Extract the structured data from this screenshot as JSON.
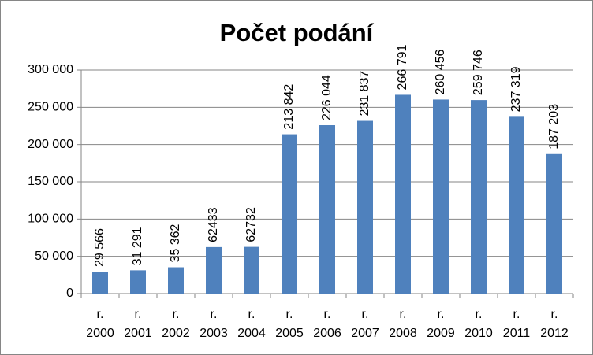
{
  "chart_data": {
    "type": "bar",
    "title": "Počet podání",
    "categories": [
      "r. 2000",
      "r. 2001",
      "r. 2002",
      "r. 2003",
      "r. 2004",
      "r. 2005",
      "r. 2006",
      "r. 2007",
      "r. 2008",
      "r. 2009",
      "r. 2010",
      "r. 2011",
      "r. 2012"
    ],
    "values": [
      29566,
      31291,
      35362,
      62433,
      62732,
      213842,
      226044,
      231837,
      266791,
      260456,
      259746,
      237319,
      187203
    ],
    "value_labels": [
      "29 566",
      "31 291",
      "35 362",
      "62433",
      "62732",
      "213 842",
      "226 044",
      "231 837",
      "266 791",
      "260 456",
      "259 746",
      "237 319",
      "187 203"
    ],
    "color": "#4f81bd",
    "ylim": [
      0,
      300000
    ],
    "yticks": [
      0,
      {
        "value": 50000,
        "label": "50 000"
      },
      {
        "value": 100000,
        "label": "100 000"
      },
      {
        "value": 150000,
        "label": "150 000"
      },
      {
        "value": 200000,
        "label": "200 000"
      },
      {
        "value": 250000,
        "label": "250 000"
      },
      {
        "value": 300000,
        "label": "300 000"
      }
    ],
    "grid": true
  }
}
